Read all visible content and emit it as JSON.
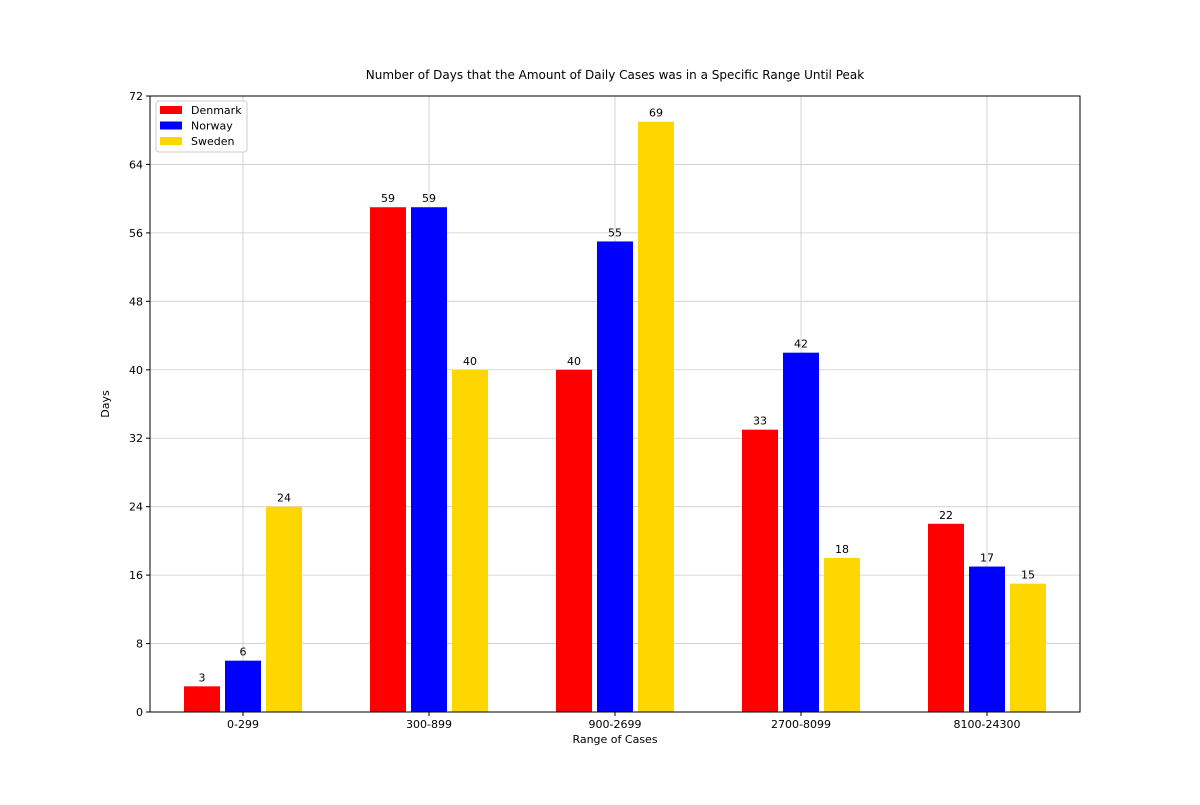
{
  "chart_data": {
    "type": "bar",
    "title": "Number of Days that the Amount of Daily Cases was in a Specific Range Until Peak",
    "xlabel": "Range of Cases",
    "ylabel": "Days",
    "categories": [
      "0-299",
      "300-899",
      "900-2699",
      "2700-8099",
      "8100-24300"
    ],
    "series": [
      {
        "name": "Denmark",
        "color": "#ff0000",
        "values": [
          3,
          59,
          40,
          33,
          22
        ]
      },
      {
        "name": "Norway",
        "color": "#0000ff",
        "values": [
          6,
          59,
          55,
          42,
          17
        ]
      },
      {
        "name": "Sweden",
        "color": "#ffd700",
        "values": [
          24,
          40,
          69,
          18,
          15
        ]
      }
    ],
    "ylim": [
      0,
      72
    ],
    "yticks": [
      0,
      8,
      16,
      24,
      32,
      40,
      48,
      56,
      64,
      72
    ],
    "grid": true,
    "legend_position": "top-left"
  }
}
